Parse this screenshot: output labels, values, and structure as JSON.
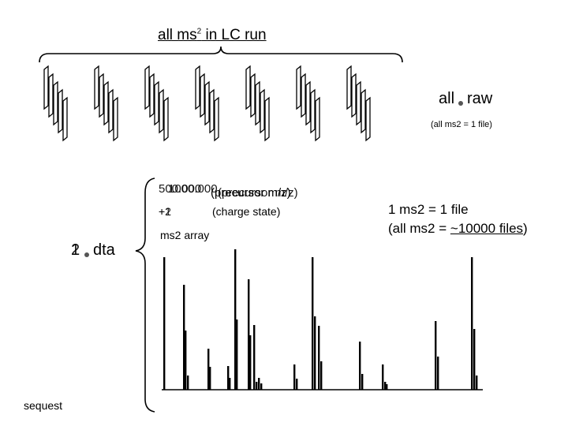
{
  "title": {
    "prefix": "all ms",
    "sup": "2",
    "suffix": " in LC run"
  },
  "raw": {
    "left": "all",
    "right": "raw",
    "subtitle": "(all ms2 = 1 file)"
  },
  "dta": {
    "numbers": [
      "1",
      "2"
    ],
    "ext": "dta"
  },
  "sequest_label": "sequest",
  "precursor": {
    "values": [
      "500.000",
      "1000.000"
    ],
    "label": "(precursor m/z)"
  },
  "charge": {
    "values": [
      "+1",
      "+2"
    ],
    "label": "(charge state)"
  },
  "array_label": "ms2 array",
  "note": {
    "line1": "1 ms2 = 1 file",
    "line2_prefix": "(all ms2 = ",
    "line2_underlined": "~10000 files",
    "line2_suffix": ")"
  },
  "chart_data": {
    "type": "bar",
    "title": "",
    "xlabel": "",
    "ylabel": "",
    "note": "relative heights of spectrum peaks (unitless sketch)",
    "values": [
      {
        "x": 208,
        "h": 168
      },
      {
        "x": 233,
        "h": 133
      },
      {
        "x": 235,
        "h": 75
      },
      {
        "x": 238,
        "h": 18
      },
      {
        "x": 264,
        "h": 52
      },
      {
        "x": 266,
        "h": 29
      },
      {
        "x": 289,
        "h": 30
      },
      {
        "x": 291,
        "h": 15
      },
      {
        "x": 298,
        "h": 178
      },
      {
        "x": 300,
        "h": 89
      },
      {
        "x": 315,
        "h": 140
      },
      {
        "x": 317,
        "h": 69
      },
      {
        "x": 322,
        "h": 82
      },
      {
        "x": 325,
        "h": 10
      },
      {
        "x": 328,
        "h": 15
      },
      {
        "x": 331,
        "h": 8
      },
      {
        "x": 373,
        "h": 32
      },
      {
        "x": 376,
        "h": 14
      },
      {
        "x": 396,
        "h": 168
      },
      {
        "x": 399,
        "h": 93
      },
      {
        "x": 404,
        "h": 81
      },
      {
        "x": 407,
        "h": 36
      },
      {
        "x": 456,
        "h": 61
      },
      {
        "x": 459,
        "h": 20
      },
      {
        "x": 485,
        "h": 32
      },
      {
        "x": 488,
        "h": 10
      },
      {
        "x": 490,
        "h": 7
      },
      {
        "x": 552,
        "h": 87
      },
      {
        "x": 555,
        "h": 42
      },
      {
        "x": 598,
        "h": 168
      },
      {
        "x": 601,
        "h": 77
      },
      {
        "x": 604,
        "h": 18
      }
    ]
  }
}
